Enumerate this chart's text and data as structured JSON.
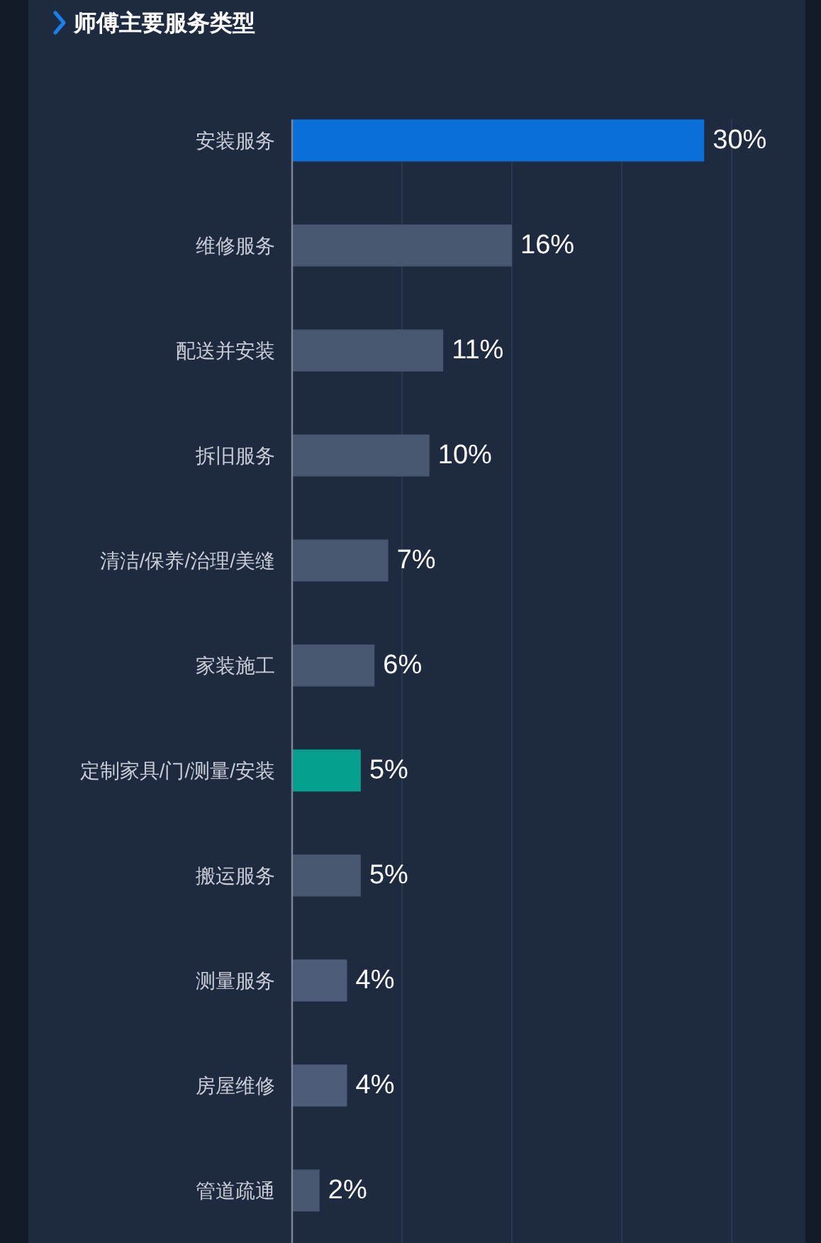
{
  "chart_data": {
    "type": "bar",
    "orientation": "horizontal",
    "title": "师傅主要服务类型",
    "categories": [
      "安装服务",
      "维修服务",
      "配送并安装",
      "拆旧服务",
      "清洁/保养/治理/美缝",
      "家装施工",
      "定制家具/门/测量/安装",
      "搬运服务",
      "测量服务",
      "房屋维修",
      "管道疏通"
    ],
    "values": [
      30,
      16,
      11,
      10,
      7,
      6,
      5,
      5,
      4,
      4,
      2
    ],
    "value_labels": [
      "30%",
      "16%",
      "11%",
      "10%",
      "7%",
      "6%",
      "5%",
      "5%",
      "4%",
      "4%",
      "2%"
    ],
    "colors": [
      "#0a6fd8",
      "#48566f",
      "#48566f",
      "#48566f",
      "#48566f",
      "#48566f",
      "#06a08c",
      "#48566f",
      "#4d5b78",
      "#4d5b78",
      "#48566f"
    ],
    "xlim": [
      0,
      32
    ],
    "xticks": [
      {
        "value": 8,
        "label": null
      },
      {
        "value": 16,
        "label": null
      },
      {
        "value": 24,
        "label": null
      },
      {
        "value": 32,
        "label": null
      }
    ],
    "grid": "x",
    "tick_labels": "y"
  }
}
